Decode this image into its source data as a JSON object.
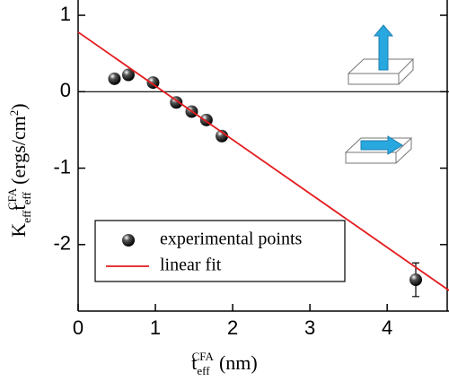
{
  "chart_data": {
    "type": "scatter",
    "xlabel": [
      "t",
      "eff",
      "CFA",
      "(nm)"
    ],
    "ylabel": [
      "K",
      "eff",
      "t",
      "eff",
      "CFA",
      "(ergs/cm",
      "2",
      ")"
    ],
    "xlim": [
      0,
      4.8
    ],
    "ylim": [
      -2.87,
      1.2
    ],
    "xticks": [
      0,
      1,
      2,
      3,
      4
    ],
    "yticks": [
      -2,
      -1,
      0,
      1
    ],
    "series": [
      {
        "name": "experimental points",
        "type": "scatter",
        "color": "#000000",
        "x": [
          0.47,
          0.65,
          0.97,
          1.27,
          1.47,
          1.66,
          1.86,
          4.37
        ],
        "values": [
          0.17,
          0.22,
          0.12,
          -0.14,
          -0.26,
          -0.37,
          -0.58,
          -2.46
        ],
        "errors": [
          null,
          null,
          null,
          null,
          null,
          null,
          null,
          0.22
        ]
      },
      {
        "name": "linear fit",
        "type": "line",
        "color": "#e31a1c",
        "x": [
          0,
          4.8
        ],
        "values": [
          0.78,
          -2.6
        ]
      }
    ]
  }
}
